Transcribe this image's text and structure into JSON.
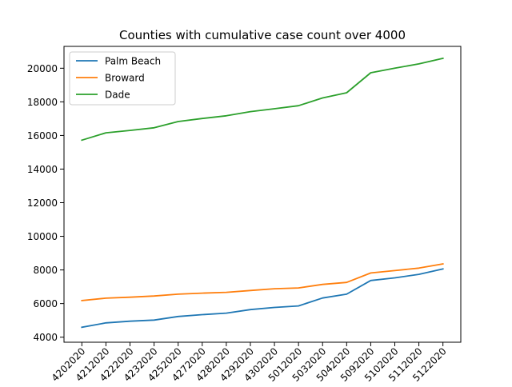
{
  "chart_data": {
    "type": "line",
    "title": "Counties with cumulative case count over 4000",
    "xlabel": "",
    "ylabel": "",
    "x_tick_labels": [
      "4202020",
      "4212020",
      "4222020",
      "4232020",
      "4252020",
      "4272020",
      "4282020",
      "4292020",
      "4302020",
      "5012020",
      "5032020",
      "5042020",
      "5092020",
      "5102020",
      "5112020",
      "5122020"
    ],
    "y_ticks": [
      4000,
      6000,
      8000,
      10000,
      12000,
      14000,
      16000,
      18000,
      20000
    ],
    "ylim": [
      3700,
      21300
    ],
    "grid": false,
    "legend_position": "top-left",
    "series": [
      {
        "name": "Palm Beach",
        "color": "#1f77b4",
        "values": [
          4590,
          4850,
          4950,
          5020,
          5230,
          5340,
          5430,
          5640,
          5770,
          5860,
          6330,
          6560,
          7370,
          7530,
          7740,
          8060
        ]
      },
      {
        "name": "Broward",
        "color": "#ff7f0e",
        "values": [
          6180,
          6320,
          6380,
          6450,
          6560,
          6620,
          6670,
          6780,
          6880,
          6930,
          7140,
          7260,
          7820,
          7960,
          8110,
          8360
        ]
      },
      {
        "name": "Dade",
        "color": "#2ca02c",
        "values": [
          15720,
          16160,
          16300,
          16460,
          16830,
          17010,
          17170,
          17420,
          17590,
          17770,
          18230,
          18540,
          19730,
          20000,
          20260,
          20590
        ]
      }
    ]
  }
}
